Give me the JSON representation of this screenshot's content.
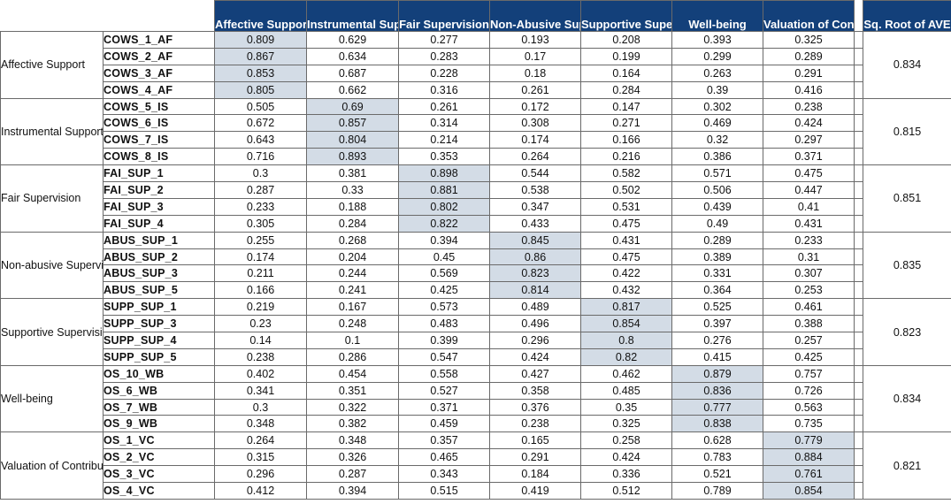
{
  "headers": {
    "columns": [
      "Affective Support",
      "Instrumental Support",
      "Fair Supervision",
      "Non-Abusive Supervision",
      "Supportive Supervision",
      "Well-being",
      "Valuation of Contribution"
    ],
    "ave": "Sq. Root of AVE"
  },
  "groups": [
    {
      "name": "Affective Support",
      "ave": "0.834",
      "rows": [
        {
          "item": "COWS_1_AF",
          "values": [
            "0.809",
            "0.629",
            "0.277",
            "0.193",
            "0.208",
            "0.393",
            "0.325"
          ]
        },
        {
          "item": "COWS_2_AF",
          "values": [
            "0.867",
            "0.634",
            "0.283",
            "0.17",
            "0.199",
            "0.299",
            "0.289"
          ]
        },
        {
          "item": "COWS_3_AF",
          "values": [
            "0.853",
            "0.687",
            "0.228",
            "0.18",
            "0.164",
            "0.263",
            "0.291"
          ]
        },
        {
          "item": "COWS_4_AF",
          "values": [
            "0.805",
            "0.662",
            "0.316",
            "0.261",
            "0.284",
            "0.39",
            "0.416"
          ]
        }
      ]
    },
    {
      "name": "Instrumental Support",
      "ave": "0.815",
      "rows": [
        {
          "item": "COWS_5_IS",
          "values": [
            "0.505",
            "0.69",
            "0.261",
            "0.172",
            "0.147",
            "0.302",
            "0.238"
          ]
        },
        {
          "item": "COWS_6_IS",
          "values": [
            "0.672",
            "0.857",
            "0.314",
            "0.308",
            "0.271",
            "0.469",
            "0.424"
          ]
        },
        {
          "item": "COWS_7_IS",
          "values": [
            "0.643",
            "0.804",
            "0.214",
            "0.174",
            "0.166",
            "0.32",
            "0.297"
          ]
        },
        {
          "item": "COWS_8_IS",
          "values": [
            "0.716",
            "0.893",
            "0.353",
            "0.264",
            "0.216",
            "0.386",
            "0.371"
          ]
        }
      ]
    },
    {
      "name": "Fair Supervision",
      "ave": "0.851",
      "rows": [
        {
          "item": "FAI_SUP_1",
          "values": [
            "0.3",
            "0.381",
            "0.898",
            "0.544",
            "0.582",
            "0.571",
            "0.475"
          ]
        },
        {
          "item": "FAI_SUP_2",
          "values": [
            "0.287",
            "0.33",
            "0.881",
            "0.538",
            "0.502",
            "0.506",
            "0.447"
          ]
        },
        {
          "item": "FAI_SUP_3",
          "values": [
            "0.233",
            "0.188",
            "0.802",
            "0.347",
            "0.531",
            "0.439",
            "0.41"
          ]
        },
        {
          "item": "FAI_SUP_4",
          "values": [
            "0.305",
            "0.284",
            "0.822",
            "0.433",
            "0.475",
            "0.49",
            "0.431"
          ]
        }
      ]
    },
    {
      "name": "Non-abusive Supervision",
      "ave": "0.835",
      "rows": [
        {
          "item": "ABUS_SUP_1",
          "values": [
            "0.255",
            "0.268",
            "0.394",
            "0.845",
            "0.431",
            "0.289",
            "0.233"
          ]
        },
        {
          "item": "ABUS_SUP_2",
          "values": [
            "0.174",
            "0.204",
            "0.45",
            "0.86",
            "0.475",
            "0.389",
            "0.31"
          ]
        },
        {
          "item": "ABUS_SUP_3",
          "values": [
            "0.211",
            "0.244",
            "0.569",
            "0.823",
            "0.422",
            "0.331",
            "0.307"
          ]
        },
        {
          "item": "ABUS_SUP_5",
          "values": [
            "0.166",
            "0.241",
            "0.425",
            "0.814",
            "0.432",
            "0.364",
            "0.253"
          ]
        }
      ]
    },
    {
      "name": "Supportive Supervision",
      "ave": "0.823",
      "rows": [
        {
          "item": "SUPP_SUP_1",
          "values": [
            "0.219",
            "0.167",
            "0.573",
            "0.489",
            "0.817",
            "0.525",
            "0.461"
          ]
        },
        {
          "item": "SUPP_SUP_3",
          "values": [
            "0.23",
            "0.248",
            "0.483",
            "0.496",
            "0.854",
            "0.397",
            "0.388"
          ]
        },
        {
          "item": "SUPP_SUP_4",
          "values": [
            "0.14",
            "0.1",
            "0.399",
            "0.296",
            "0.8",
            "0.276",
            "0.257"
          ]
        },
        {
          "item": "SUPP_SUP_5",
          "values": [
            "0.238",
            "0.286",
            "0.547",
            "0.424",
            "0.82",
            "0.415",
            "0.425"
          ]
        }
      ]
    },
    {
      "name": "Well-being",
      "ave": "0.834",
      "rows": [
        {
          "item": "OS_10_WB",
          "values": [
            "0.402",
            "0.454",
            "0.558",
            "0.427",
            "0.462",
            "0.879",
            "0.757"
          ]
        },
        {
          "item": "OS_6_WB",
          "values": [
            "0.341",
            "0.351",
            "0.527",
            "0.358",
            "0.485",
            "0.836",
            "0.726"
          ]
        },
        {
          "item": "OS_7_WB",
          "values": [
            "0.3",
            "0.322",
            "0.371",
            "0.376",
            "0.35",
            "0.777",
            "0.563"
          ]
        },
        {
          "item": "OS_9_WB",
          "values": [
            "0.348",
            "0.382",
            "0.459",
            "0.238",
            "0.325",
            "0.838",
            "0.735"
          ]
        }
      ]
    },
    {
      "name": "Valuation of Contribution",
      "ave": "0.821",
      "rows": [
        {
          "item": "OS_1_VC",
          "values": [
            "0.264",
            "0.348",
            "0.357",
            "0.165",
            "0.258",
            "0.628",
            "0.779"
          ]
        },
        {
          "item": "OS_2_VC",
          "values": [
            "0.315",
            "0.326",
            "0.465",
            "0.291",
            "0.424",
            "0.783",
            "0.884"
          ]
        },
        {
          "item": "OS_3_VC",
          "values": [
            "0.296",
            "0.287",
            "0.343",
            "0.184",
            "0.336",
            "0.521",
            "0.761"
          ]
        },
        {
          "item": "OS_4_VC",
          "values": [
            "0.412",
            "0.394",
            "0.515",
            "0.419",
            "0.512",
            "0.789",
            "0.854"
          ]
        }
      ]
    }
  ],
  "highlight_color": "#d3dce6",
  "header_color": "#13407a"
}
